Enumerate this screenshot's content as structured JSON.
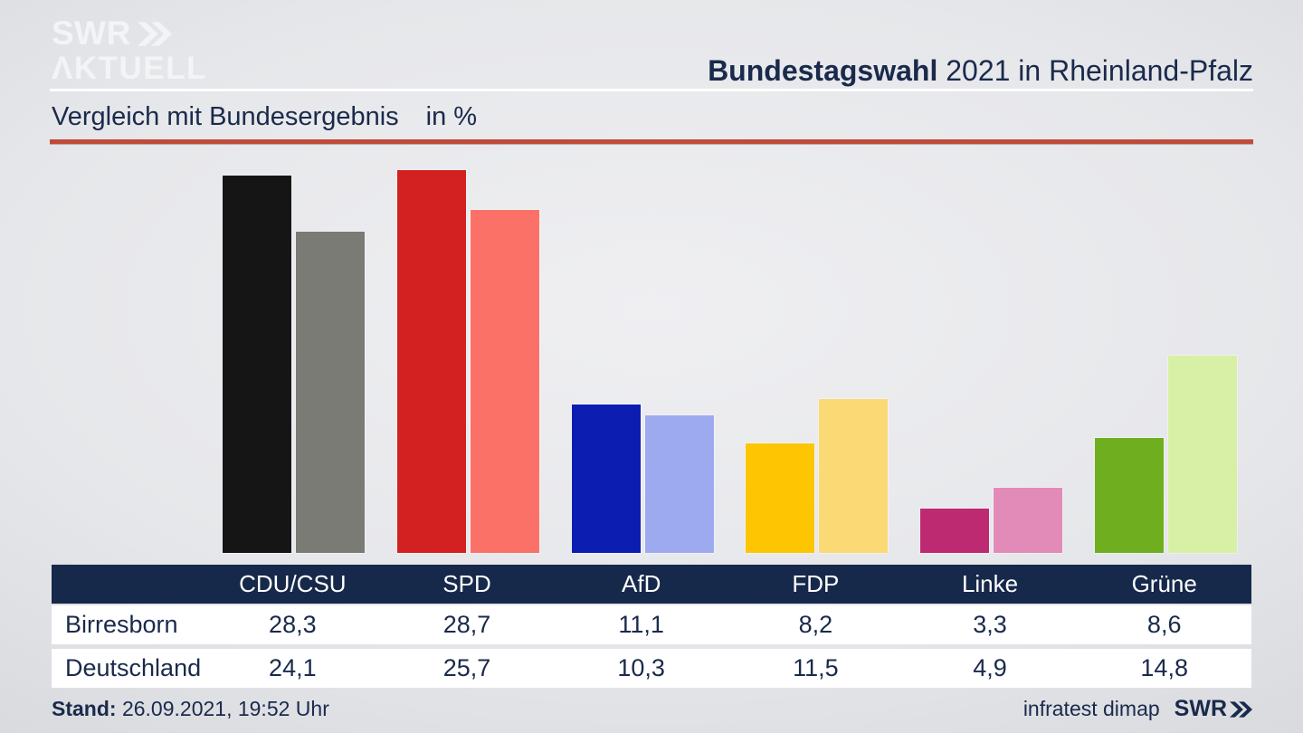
{
  "header": {
    "logo": {
      "line1": "SWR",
      "line2": "ΛKTUELL"
    },
    "title_bold": "Bundestagswahl",
    "title_rest": " 2021 in Rheinland-Pfalz"
  },
  "subtitle": {
    "text": "Vergleich mit Bundesergebnis",
    "unit": "in %"
  },
  "chart_data": {
    "type": "bar",
    "title": "Vergleich mit Bundesergebnis in %",
    "categories": [
      "CDU/CSU",
      "SPD",
      "AfD",
      "FDP",
      "Linke",
      "Grüne"
    ],
    "series": [
      {
        "name": "Birresborn",
        "values": [
          28.3,
          28.7,
          11.1,
          8.2,
          3.3,
          8.6
        ],
        "colors": [
          "#151515",
          "#d32121",
          "#0c1db2",
          "#fdc502",
          "#be2a72",
          "#6fae1e"
        ]
      },
      {
        "name": "Deutschland",
        "values": [
          24.1,
          25.7,
          10.3,
          11.5,
          4.9,
          14.8
        ],
        "colors": [
          "#7b7b76",
          "#fb7168",
          "#9daaf0",
          "#fbd974",
          "#e28bb9",
          "#d8f0a5"
        ]
      }
    ],
    "ylim": [
      0,
      30
    ],
    "unit": "%",
    "grid": false,
    "legend_position": "table-below",
    "value_format": "comma-decimal"
  },
  "table": {
    "columns": [
      "CDU/CSU",
      "SPD",
      "AfD",
      "FDP",
      "Linke",
      "Grüne"
    ],
    "rows": [
      {
        "label": "Birresborn",
        "values": [
          "28,3",
          "28,7",
          "11,1",
          "8,2",
          "3,3",
          "8,6"
        ]
      },
      {
        "label": "Deutschland",
        "values": [
          "24,1",
          "25,7",
          "10,3",
          "11,5",
          "4,9",
          "14,8"
        ]
      }
    ]
  },
  "footer": {
    "stand_label": "Stand:",
    "stand_value": " 26.09.2021, 19:52 Uhr",
    "source": "infratest dimap",
    "brand": "SWR"
  },
  "colors": {
    "text_navy": "#1a2a4c",
    "table_header_bg": "#16294b",
    "accent_rule": "#c04b38",
    "logo_white": "#f3f4f6",
    "background_center": "#e6e7ea",
    "background_edge": "#c5c8cd"
  }
}
